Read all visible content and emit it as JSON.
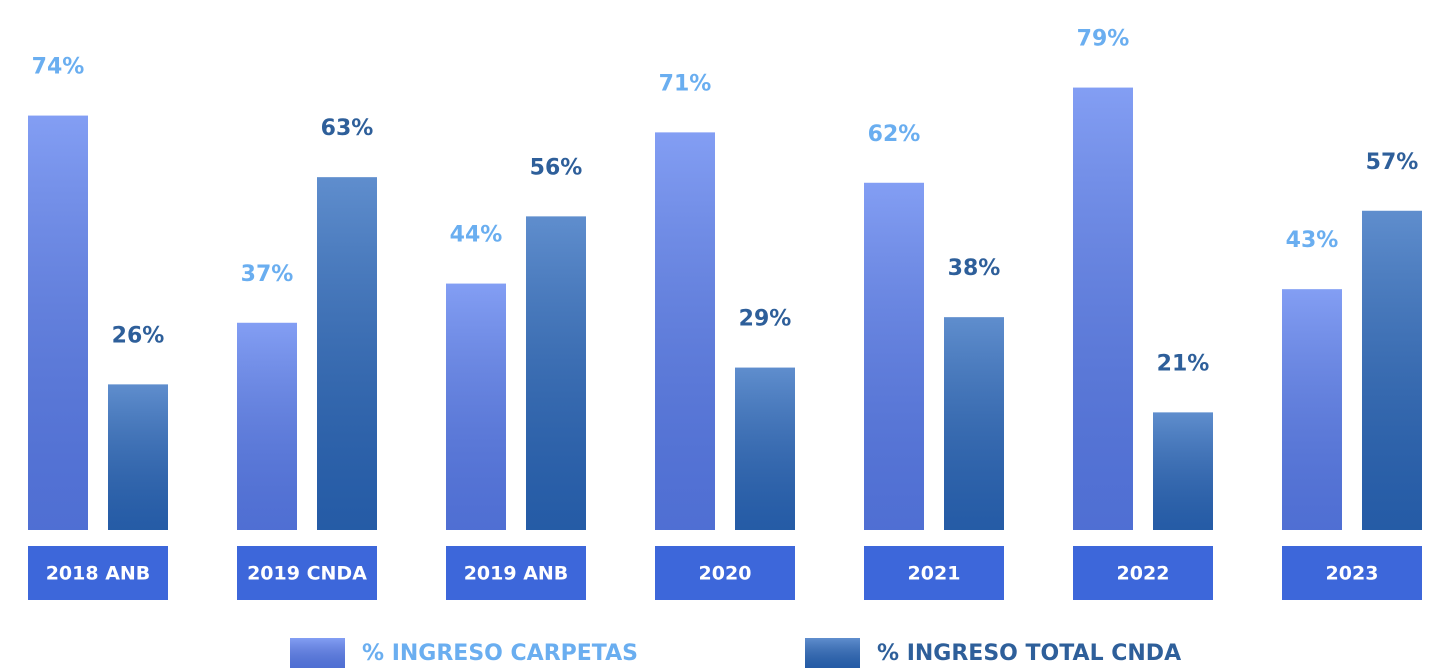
{
  "chart_data": {
    "type": "bar",
    "categories": [
      "2018 ANB",
      "2019 CNDA",
      "2019 ANB",
      "2020",
      "2021",
      "2022",
      "2023"
    ],
    "series": [
      {
        "name": "% INGRESO CARPETAS",
        "color": "#5a7ef0",
        "values": [
          74,
          37,
          44,
          71,
          62,
          79,
          43
        ],
        "value_labels": [
          "74%",
          "37%",
          "44%",
          "71%",
          "62%",
          "79%",
          "43%"
        ]
      },
      {
        "name": "% INGRESO TOTAL CNDA",
        "color": "#2a68bd",
        "values": [
          26,
          63,
          56,
          29,
          38,
          21,
          57
        ],
        "value_labels": [
          "26%",
          "63%",
          "56%",
          "29%",
          "38%",
          "21%",
          "57%"
        ]
      }
    ]
  }
}
